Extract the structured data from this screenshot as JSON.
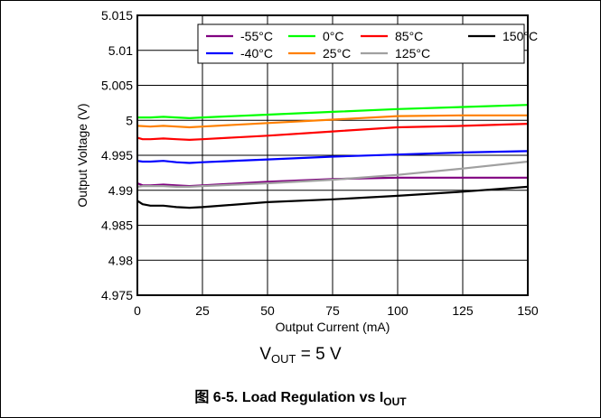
{
  "chart_data": {
    "type": "line",
    "xlabel": "Output Current (mA)",
    "ylabel": "Output Voltage (V)",
    "xlim": [
      0,
      150
    ],
    "ylim": [
      4.975,
      5.015
    ],
    "x_ticks": [
      0,
      25,
      50,
      75,
      100,
      125,
      150
    ],
    "x_tick_labels": [
      "0",
      "25",
      "50",
      "75",
      "100",
      "125",
      "150"
    ],
    "y_ticks": [
      4.975,
      4.98,
      4.985,
      4.99,
      4.995,
      5,
      5.005,
      5.01,
      5.015
    ],
    "y_tick_labels": [
      "4.975",
      "4.98",
      "4.985",
      "4.99",
      "4.995",
      "5",
      "5.005",
      "5.01",
      "5.015"
    ],
    "grid": true,
    "legend_position": "top-right",
    "series": [
      {
        "name": "-55°C",
        "color": "#800080",
        "x": [
          0,
          2,
          5,
          10,
          15,
          20,
          25,
          50,
          75,
          100,
          125,
          150
        ],
        "y": [
          4.991,
          4.9907,
          4.9907,
          4.9908,
          4.9907,
          4.9906,
          4.9907,
          4.9912,
          4.9916,
          4.9918,
          4.9918,
          4.9918
        ]
      },
      {
        "name": "-40°C",
        "color": "#0000ff",
        "x": [
          0,
          2,
          5,
          10,
          15,
          20,
          25,
          50,
          75,
          100,
          125,
          150
        ],
        "y": [
          4.9942,
          4.9941,
          4.9941,
          4.9942,
          4.994,
          4.9939,
          4.994,
          4.9944,
          4.9948,
          4.9951,
          4.9954,
          4.9956
        ]
      },
      {
        "name": "0°C",
        "color": "#00ff00",
        "x": [
          0,
          5,
          10,
          15,
          20,
          25,
          50,
          75,
          100,
          125,
          150
        ],
        "y": [
          5.0004,
          5.0004,
          5.0005,
          5.0004,
          5.0003,
          5.0004,
          5.0008,
          5.0012,
          5.0016,
          5.0019,
          5.0022
        ]
      },
      {
        "name": "25°C",
        "color": "#ff8000",
        "x": [
          0,
          5,
          10,
          15,
          20,
          25,
          50,
          75,
          100,
          125,
          150
        ],
        "y": [
          4.9992,
          4.9991,
          4.9992,
          4.9991,
          4.999,
          4.9991,
          4.9996,
          5.0001,
          5.0006,
          5.0007,
          5.0007
        ]
      },
      {
        "name": "85°C",
        "color": "#ff0000",
        "x": [
          0,
          2,
          5,
          10,
          15,
          20,
          25,
          50,
          75,
          100,
          125,
          150
        ],
        "y": [
          4.9975,
          4.9973,
          4.9973,
          4.9974,
          4.9973,
          4.9972,
          4.9973,
          4.9978,
          4.9984,
          4.999,
          4.9992,
          4.9995
        ]
      },
      {
        "name": "125°C",
        "color": "#a0a0a0",
        "x": [
          0,
          2,
          5,
          10,
          15,
          20,
          25,
          50,
          75,
          100,
          125,
          150
        ],
        "y": [
          4.9905,
          4.9906,
          4.9906,
          4.9906,
          4.9905,
          4.9905,
          4.9906,
          4.991,
          4.9915,
          4.9922,
          4.9931,
          4.9941
        ]
      },
      {
        "name": "150°C",
        "color": "#000000",
        "x": [
          0,
          2,
          5,
          10,
          15,
          20,
          25,
          50,
          75,
          100,
          125,
          150
        ],
        "y": [
          4.9885,
          4.988,
          4.9878,
          4.9878,
          4.9876,
          4.9875,
          4.9876,
          4.9883,
          4.9887,
          4.9892,
          4.9898,
          4.9905
        ]
      }
    ]
  },
  "subtitle": {
    "main": "V",
    "sub": "OUT",
    "rest": " = 5 V"
  },
  "caption": {
    "prefix": "图 6-5. Load Regulation vs I",
    "sub": "OUT"
  }
}
